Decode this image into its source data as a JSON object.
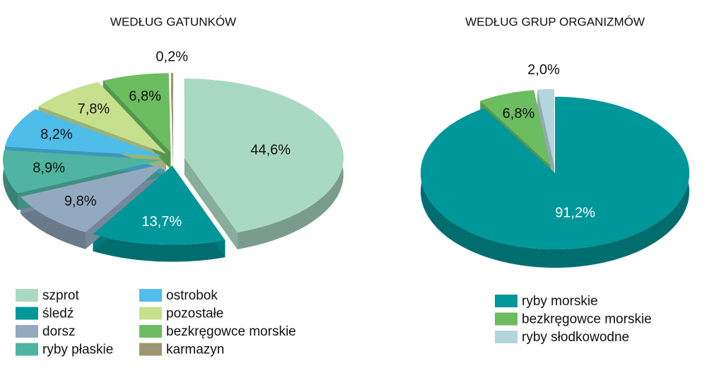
{
  "chart_data": [
    {
      "type": "pie",
      "title": "WEDŁUG GATUNKÓW",
      "categories": [
        "szprot",
        "śledź",
        "dorsz",
        "ryby płaskie",
        "ostrobok",
        "pozostałe",
        "bezkręgowce morskie",
        "karmazyn"
      ],
      "values": [
        44.6,
        13.7,
        9.8,
        8.9,
        8.2,
        7.8,
        6.8,
        0.2
      ],
      "value_labels": [
        "44,6%",
        "13,7%",
        "9,8%",
        "8,9%",
        "8,2%",
        "7,8%",
        "6,8%",
        "0,2%"
      ],
      "colors": [
        "#a9d9c2",
        "#00979a",
        "#93a9bf",
        "#4fb4a2",
        "#4fbdea",
        "#c6e08e",
        "#6cbd60",
        "#9c9670"
      ]
    },
    {
      "type": "pie",
      "title": "WEDŁUG GRUP ORGANIZMÓW",
      "categories": [
        "ryby morskie",
        "bezkręgowce morskie",
        "ryby słodkowodne"
      ],
      "values": [
        91.2,
        6.8,
        2.0
      ],
      "value_labels": [
        "91,2%",
        "6,8%",
        "2,0%"
      ],
      "colors": [
        "#00979a",
        "#6cbd60",
        "#b3d5dc"
      ]
    }
  ]
}
